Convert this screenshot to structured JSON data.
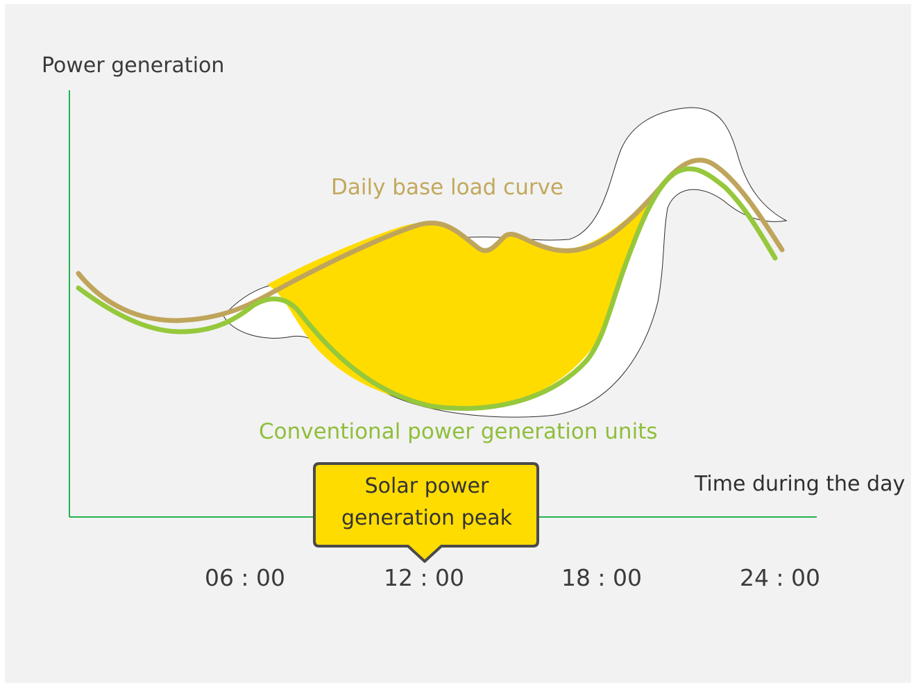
{
  "diagram": {
    "y_axis_label": "Power generation",
    "x_axis_label": "Time during the day",
    "curves": {
      "base_load_label": "Daily base load curve",
      "conventional_label": "Conventional power generation units"
    },
    "ticks": [
      "06 : 00",
      "12 : 00",
      "18 : 00",
      "24 : 00"
    ],
    "callout": {
      "line1": "Solar power",
      "line2": "generation peak"
    },
    "colors": {
      "background": "#f2f2f2",
      "axis": "#22b24c",
      "base_load": "#bfa55b",
      "conventional": "#96c83c",
      "solar_fill": "#ffdc00",
      "callout_border": "#4a4a4a"
    }
  }
}
